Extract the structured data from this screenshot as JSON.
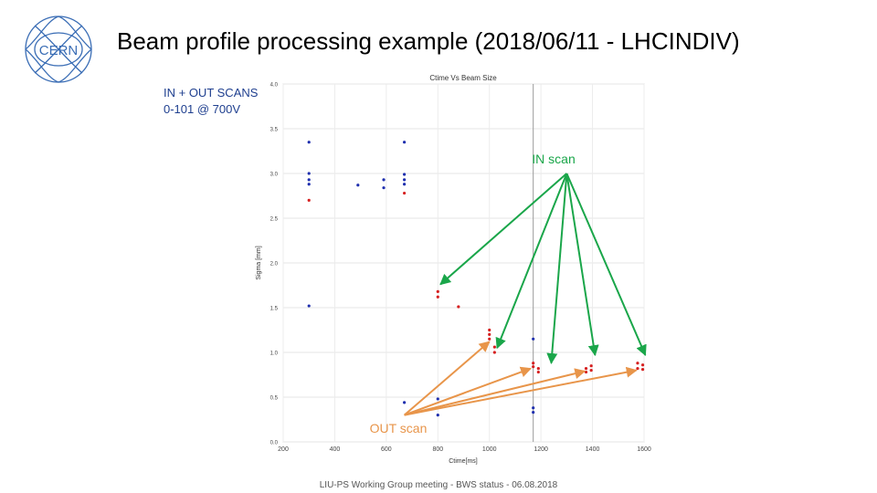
{
  "slide": {
    "title": "Beam profile processing example (2018/06/11 - LHCINDIV)",
    "logo_text": "CERN",
    "scans_note_line1": "IN + OUT SCANS",
    "scans_note_line2": "0-101 @ 700V",
    "footer": "LIU-PS Working Group meeting - BWS status - 06.08.2018"
  },
  "annotations": {
    "in_scan": "IN scan",
    "out_scan": "OUT scan"
  },
  "colors": {
    "in_series": "#d62020",
    "out_series": "#1f2fae",
    "in_arrow": "#1aa64a",
    "out_arrow": "#e8954a"
  },
  "chart_data": {
    "type": "scatter",
    "title": "Ctime Vs Beam Size",
    "xlabel": "Ctime[ms]",
    "ylabel": "Sigma [mm]",
    "xlim": [
      200,
      1600
    ],
    "ylim": [
      0.0,
      4.0
    ],
    "xticks": [
      200,
      400,
      600,
      800,
      1000,
      1200,
      1400,
      1600
    ],
    "yticks": [
      "0.0",
      "0.5",
      "1.0",
      "1.5",
      "2.0",
      "2.5",
      "3.0",
      "3.5",
      "4.0"
    ],
    "marker_line_x": 1170,
    "series": [
      {
        "name": "IN scan",
        "color": "#d62020",
        "points": [
          [
            300,
            2.7
          ],
          [
            670,
            2.78
          ],
          [
            800,
            1.62
          ],
          [
            800,
            1.68
          ],
          [
            880,
            1.51
          ],
          [
            1000,
            1.25
          ],
          [
            1000,
            1.2
          ],
          [
            1000,
            1.15
          ],
          [
            1020,
            1.06
          ],
          [
            1020,
            1.0
          ],
          [
            1170,
            0.88
          ],
          [
            1170,
            0.84
          ],
          [
            1190,
            0.82
          ],
          [
            1190,
            0.78
          ],
          [
            1375,
            0.82
          ],
          [
            1375,
            0.78
          ],
          [
            1395,
            0.85
          ],
          [
            1395,
            0.8
          ],
          [
            1575,
            0.88
          ],
          [
            1575,
            0.82
          ],
          [
            1595,
            0.86
          ],
          [
            1595,
            0.81
          ]
        ]
      },
      {
        "name": "OUT scan",
        "color": "#1f2fae",
        "points": [
          [
            300,
            3.35
          ],
          [
            300,
            3.0
          ],
          [
            300,
            2.93
          ],
          [
            300,
            2.88
          ],
          [
            300,
            1.52
          ],
          [
            490,
            2.87
          ],
          [
            590,
            2.93
          ],
          [
            590,
            2.84
          ],
          [
            670,
            3.35
          ],
          [
            670,
            2.99
          ],
          [
            670,
            2.93
          ],
          [
            670,
            2.88
          ],
          [
            670,
            0.44
          ],
          [
            800,
            0.48
          ],
          [
            800,
            0.3
          ],
          [
            1170,
            1.15
          ],
          [
            1170,
            0.38
          ],
          [
            1170,
            0.33
          ]
        ]
      }
    ]
  }
}
